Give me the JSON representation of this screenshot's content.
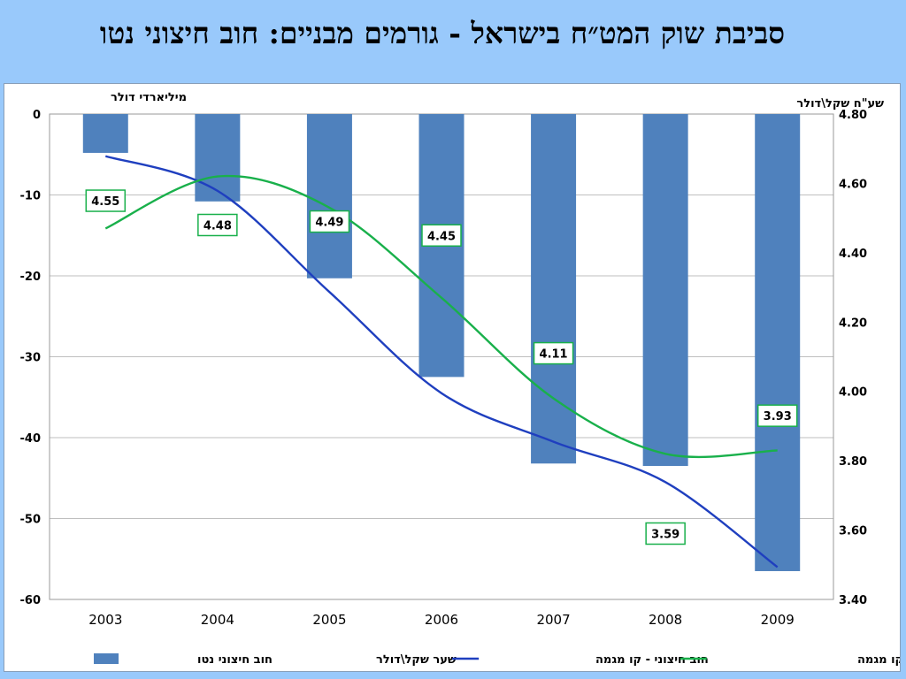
{
  "slide": {
    "title": "סביבת שוק המט״ח בישראל - גורמים מבניים: חוב חיצוני נטו"
  },
  "chart_data": {
    "type": "bar+line",
    "left_axis_title": "מיליארדי דולר",
    "right_axis_title": "שע\"ח שקל\\דולר",
    "categories": [
      "2003",
      "2004",
      "2005",
      "2006",
      "2007",
      "2008",
      "2009"
    ],
    "y_left": {
      "min": -60,
      "max": 0,
      "ticks": [
        "0",
        "-10",
        "-20",
        "-30",
        "-40",
        "-50",
        "-60"
      ]
    },
    "y_right": {
      "min": 3.4,
      "max": 4.8,
      "ticks": [
        "4.80",
        "4.60",
        "4.40",
        "4.20",
        "4.00",
        "3.80",
        "3.60",
        "3.40"
      ]
    },
    "grid": true,
    "series": [
      {
        "name": "חוב חיצוני נטו",
        "kind": "bar",
        "axis": "left",
        "color": "#4f81bd",
        "values": [
          -4.8,
          -10.8,
          -20.3,
          -32.5,
          -43.2,
          -43.5,
          -56.5
        ]
      },
      {
        "name": "שער שקל\\דולר",
        "kind": "data-labels",
        "axis": "right",
        "values": [
          4.55,
          4.48,
          4.49,
          4.45,
          4.11,
          3.59,
          3.93
        ],
        "labels": [
          "4.55",
          "4.48",
          "4.49",
          "4.45",
          "4.11",
          "3.59",
          "3.93"
        ]
      },
      {
        "name": "חוב חיצוני - קו מגמה",
        "kind": "trend",
        "axis": "left",
        "color": "#1f3fbf",
        "values": [
          -5.2,
          -9.5,
          -22.0,
          -34.5,
          -40.5,
          -45.5,
          -56.0
        ]
      },
      {
        "name": "שער השקל\\דולר - קו מגמה",
        "kind": "trend",
        "axis": "right",
        "color": "#19b04b",
        "values": [
          4.47,
          4.62,
          4.53,
          4.27,
          3.98,
          3.82,
          3.83
        ]
      }
    ],
    "legend_position": "bottom"
  }
}
